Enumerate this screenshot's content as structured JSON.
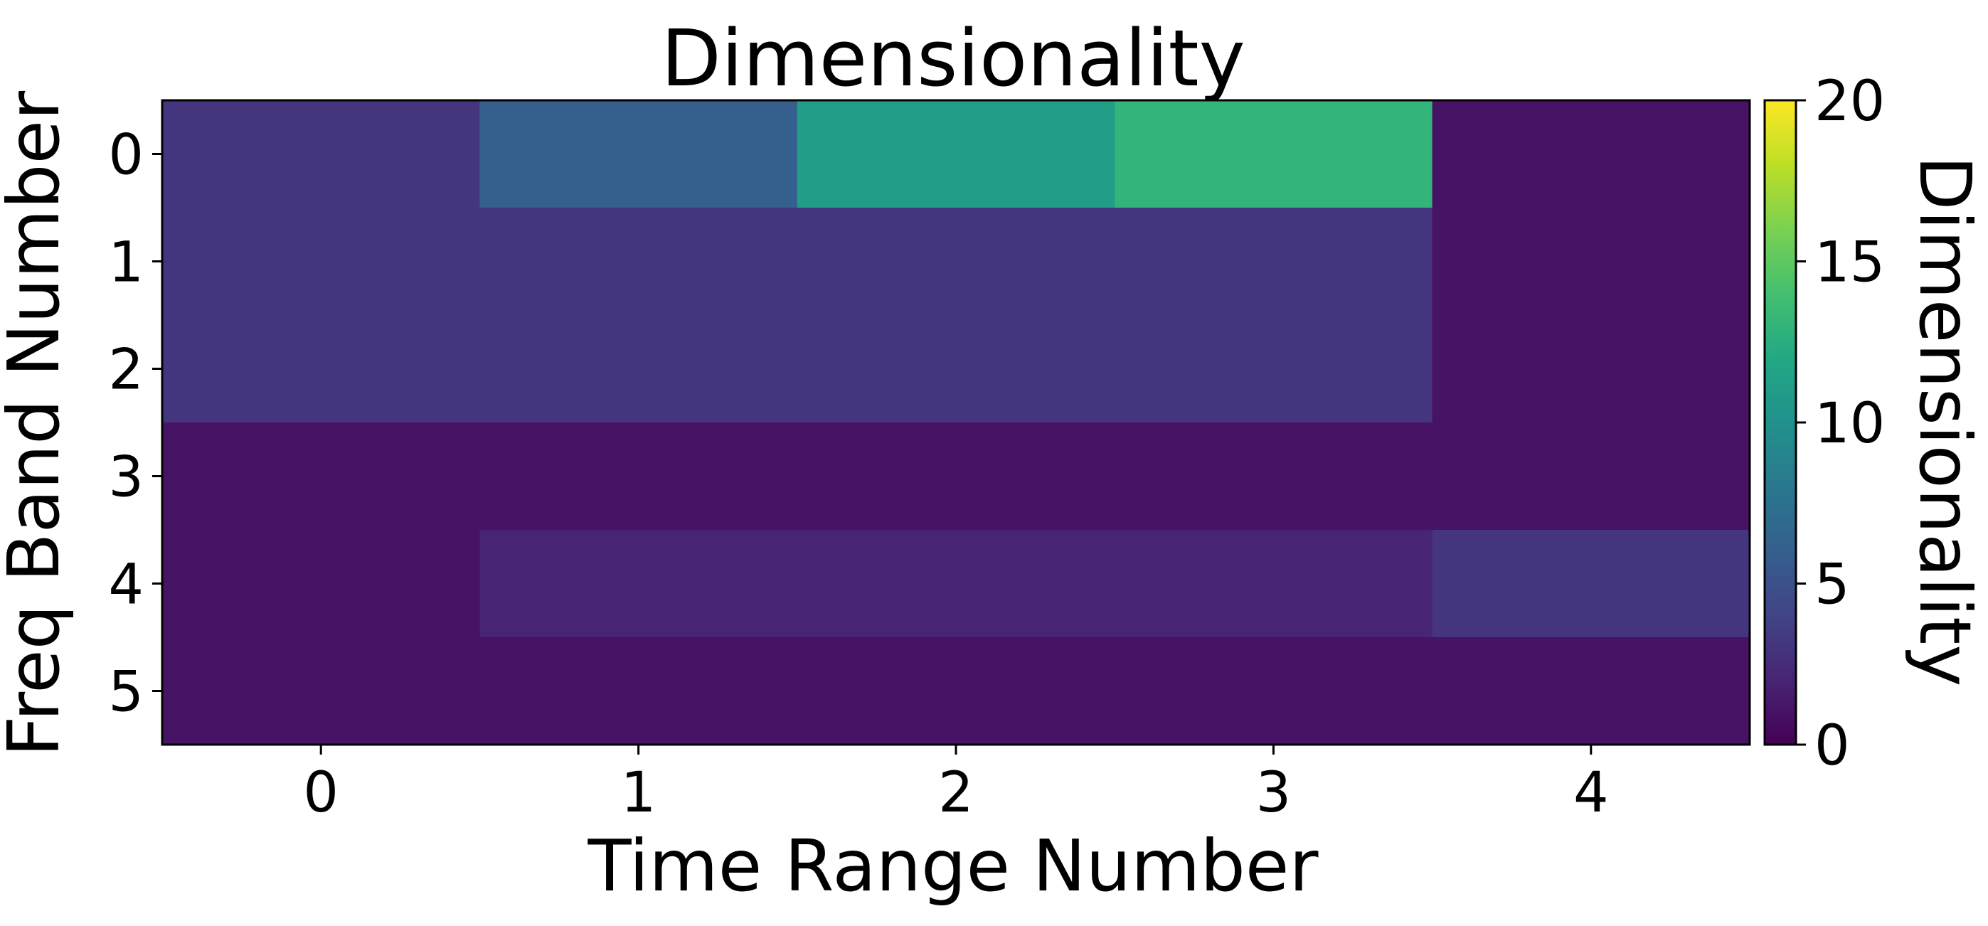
{
  "chart_data": {
    "type": "heatmap",
    "title": "Dimensionality",
    "xlabel": "Time Range Number",
    "ylabel": "Freq Band Number",
    "x_categories": [
      "0",
      "1",
      "2",
      "3",
      "4"
    ],
    "y_categories": [
      "0",
      "1",
      "2",
      "3",
      "4",
      "5"
    ],
    "values": [
      [
        3,
        6,
        11,
        13,
        1
      ],
      [
        3,
        3,
        3,
        3,
        1
      ],
      [
        3,
        3,
        3,
        3,
        1
      ],
      [
        1,
        1,
        1,
        1,
        1
      ],
      [
        1,
        2,
        2,
        2,
        3
      ],
      [
        1,
        1,
        1,
        1,
        1
      ]
    ],
    "colormap": "viridis",
    "colorbar": {
      "label": "Dimensionality",
      "range": [
        0,
        20
      ],
      "ticks": [
        "0",
        "5",
        "10",
        "15",
        "20"
      ]
    },
    "grid": false
  }
}
